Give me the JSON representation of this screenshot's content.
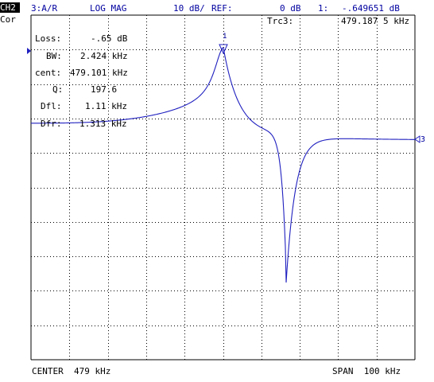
{
  "header": {
    "channel": "CH2",
    "cor": "Cor",
    "measurement": "3:A/R",
    "format": "LOG MAG",
    "scale": "10 dB/",
    "ref_label": "REF:",
    "ref_value": "0 dB",
    "marker_id": "1:",
    "marker_value": "-.649651 dB"
  },
  "trace_info": {
    "trace": "Trc3:",
    "frequency": "479.187 5 kHz"
  },
  "stats": [
    {
      "label": "Loss:",
      "value": "-.65 dB"
    },
    {
      "label": "BW:",
      "value": "2.424 kHz"
    },
    {
      "label": "cent:",
      "value": "479.101 kHz"
    },
    {
      "label": "Q:",
      "value": "197.6"
    },
    {
      "label": "Dfl:",
      "value": "1.11 kHz"
    },
    {
      "label": "Dfr:",
      "value": "1.313 kHz"
    }
  ],
  "markers": {
    "marker1_label": "1",
    "trace_end_label": "3"
  },
  "footer": {
    "center": "CENTER  479 kHz",
    "span": "SPAN  100 kHz"
  },
  "colors": {
    "trace": "#2020c0",
    "grid": "#000000",
    "text": "#0000a0"
  }
}
